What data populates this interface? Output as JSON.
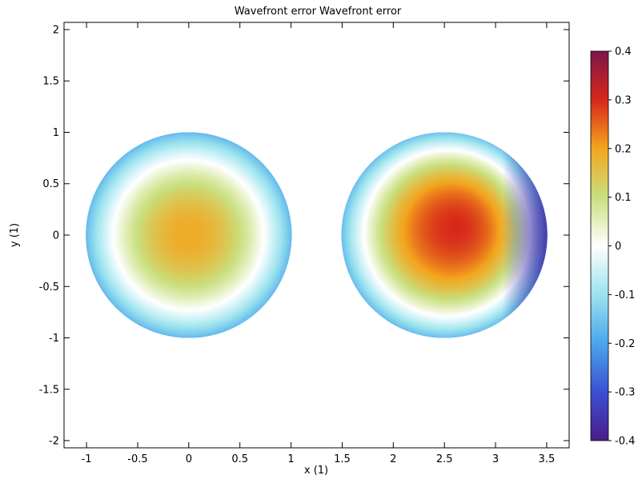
{
  "chart_data": {
    "type": "heatmap",
    "title": "Wavefront error Wavefront error",
    "xlabel": "x (1)",
    "ylabel": "y (1)",
    "xlim": [
      -1.22,
      3.72
    ],
    "ylim": [
      -2.07,
      2.07
    ],
    "x_ticks": [
      -1,
      -0.5,
      0,
      0.5,
      1,
      1.5,
      2,
      2.5,
      3,
      3.5
    ],
    "x_tick_labels": [
      "-1",
      "-0.5",
      "0",
      "0.5",
      "1",
      "1.5",
      "2",
      "2.5",
      "3",
      "3.5"
    ],
    "y_ticks": [
      -2,
      -1.5,
      -1,
      -0.5,
      0,
      0.5,
      1,
      1.5,
      2
    ],
    "y_tick_labels": [
      "-2",
      "-1.5",
      "-1",
      "-0.5",
      "0",
      "0.5",
      "1",
      "1.5",
      "2"
    ],
    "grid": false,
    "pupils": [
      {
        "center_x": 0,
        "center_y": 0,
        "radius": 1,
        "value_center": 0.19,
        "value_edge": -0.2,
        "peak_x": 0,
        "peak_y": 0,
        "tilt": 0
      },
      {
        "center_x": 2.5,
        "center_y": 0,
        "radius": 1,
        "value_center": 0.3,
        "value_edge": -0.2,
        "peak_x": 2.62,
        "peak_y": 0.08,
        "tilt": 0.13
      }
    ],
    "colorbar": {
      "min": -0.4,
      "max": 0.4,
      "ticks": [
        0.4,
        0.3,
        0.2,
        0.1,
        0,
        -0.1,
        -0.2,
        -0.3,
        -0.4
      ],
      "tick_labels": [
        "0.4",
        "0.3",
        "0.2",
        "0.1",
        "0",
        "-0.1",
        "-0.2",
        "-0.3",
        "-0.4"
      ],
      "colormap": [
        "#4a1d8a",
        "#3c4fd3",
        "#4aa6ec",
        "#9be3ee",
        "#ffffff",
        "#c9df7e",
        "#f3a51d",
        "#d7281a",
        "#7d1549"
      ]
    }
  }
}
